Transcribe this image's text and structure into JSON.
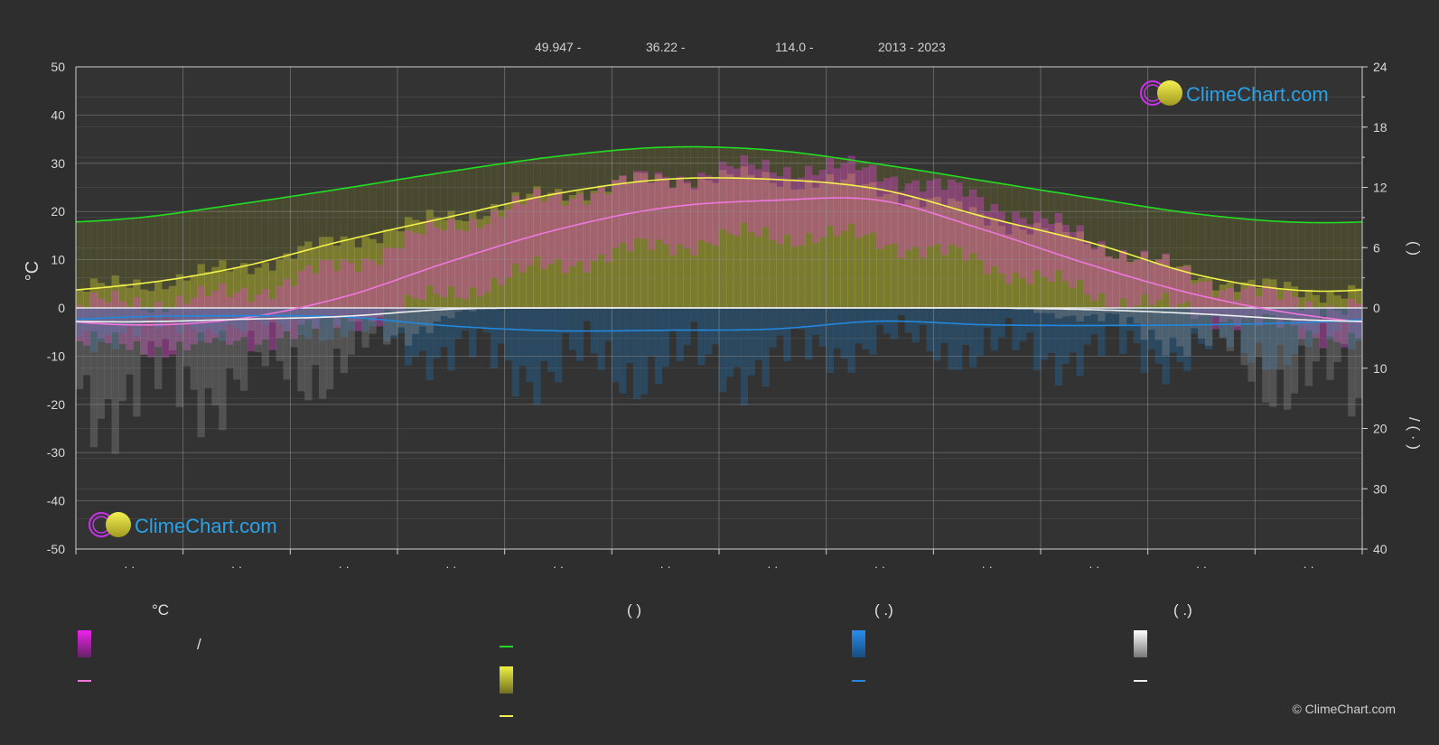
{
  "header": {
    "latitude": "49.947 -",
    "longitude": "36.22 -",
    "elevation": "114.0 -",
    "years": "2013 - 2023"
  },
  "logo": {
    "text": "ClimeChart.com"
  },
  "copyright": "© ClimeChart.com",
  "colors": {
    "background": "#2e2e2e",
    "daylight": "#22dd22",
    "sunshine_line": "#f2f24a",
    "temp_line": "#ee77dd",
    "rain_line": "#2288dd",
    "snow_line": "#f0f0f0",
    "temp_fill": "#dd44cc",
    "sunshine_fill": "#d8d830",
    "rain_fill": "#1f6fb0",
    "snow_fill": "#9a9a9a",
    "logo_blue": "#2aa2e8"
  },
  "legend": {
    "col1": {
      "heading": "°C",
      "slash": "/"
    },
    "col2": {
      "heading": "(          )"
    },
    "col3": {
      "heading": "(   .)"
    },
    "col4": {
      "heading": "(   .)"
    }
  },
  "chart_data": {
    "type": "line",
    "yleft": {
      "label": "°C",
      "range": [
        -50,
        50
      ],
      "ticks": [
        "50",
        "40",
        "30",
        "20",
        "10",
        "0",
        "-10",
        "-20",
        "-30",
        "-40",
        "-50"
      ]
    },
    "yright_top": {
      "label": "(   )",
      "range": [
        0,
        24
      ],
      "ticks": [
        "24",
        "18",
        "12",
        "6",
        "0"
      ]
    },
    "yright_bottom": {
      "label": "/ (  ·  )",
      "range": [
        0,
        40
      ],
      "ticks": [
        "10",
        "20",
        "30",
        "40"
      ]
    },
    "x_tick_labels": [
      "· ·",
      "· ·",
      "· ·",
      "· ·",
      "· ·",
      "· ·",
      "· ·",
      "· ·",
      "· ·",
      "· ·",
      "· ·",
      "· ·"
    ],
    "months": 12,
    "grid": true,
    "series": [
      {
        "key": "daylight_hours",
        "axis": "hours",
        "values": [
          8.9,
          10.3,
          11.9,
          13.6,
          15.1,
          16.0,
          15.7,
          14.3,
          12.6,
          10.9,
          9.3,
          8.5
        ]
      },
      {
        "key": "sunshine_hours",
        "axis": "hours",
        "values": [
          2.3,
          4.0,
          6.7,
          9.1,
          11.4,
          12.8,
          12.8,
          11.8,
          9.0,
          6.4,
          3.2,
          1.7
        ]
      },
      {
        "key": "mean_temperature",
        "axis": "celsius",
        "values": [
          -3.5,
          -2.3,
          2.3,
          9.7,
          16.3,
          20.8,
          22.3,
          22.3,
          16.0,
          8.7,
          2.5,
          -1.6
        ]
      },
      {
        "key": "max_temperature_band",
        "axis": "celsius",
        "values": [
          1,
          3,
          9,
          17,
          23,
          27,
          29,
          28,
          22,
          14,
          6,
          1
        ]
      },
      {
        "key": "min_temperature_band",
        "axis": "celsius",
        "values": [
          -8,
          -7,
          -3,
          3,
          9,
          13,
          15,
          14,
          9,
          3,
          -1,
          -5
        ]
      },
      {
        "key": "rain_mm_per_day",
        "axis": "precip",
        "values": [
          1.5,
          1.3,
          1.5,
          3.0,
          3.8,
          3.7,
          3.5,
          2.2,
          2.8,
          2.9,
          2.8,
          2.4
        ]
      },
      {
        "key": "snow_mm_per_day",
        "axis": "precip",
        "values": [
          2.3,
          1.9,
          1.4,
          0.2,
          0.0,
          0.0,
          0.0,
          0.0,
          0.0,
          0.3,
          1.0,
          2.0
        ]
      }
    ]
  }
}
